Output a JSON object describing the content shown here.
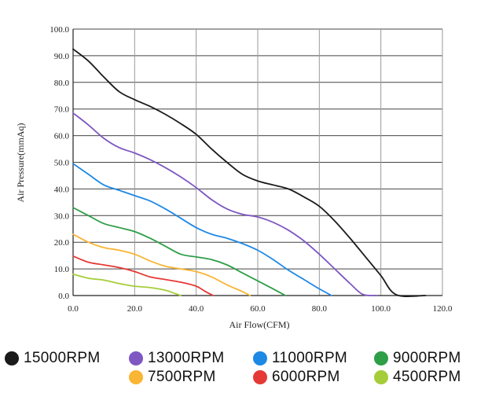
{
  "chart_data": {
    "type": "line",
    "title": "",
    "xlabel": "Air Flow(CFM)",
    "ylabel": "Air Pressure(mmAq)",
    "xlim": [
      0,
      120
    ],
    "ylim": [
      0,
      100
    ],
    "x_ticks": [
      "0.0",
      "20.0",
      "40.0",
      "60.0",
      "80.0",
      "100.0",
      "120.0"
    ],
    "y_ticks": [
      "0.0",
      "10.0",
      "20.0",
      "30.0",
      "40.0",
      "50.0",
      "60.0",
      "70.0",
      "80.0",
      "90.0",
      "100.0"
    ],
    "grid": true,
    "legend_position": "bottom",
    "series": [
      {
        "name": "15000RPM",
        "color": "#1a1a1a",
        "points": [
          [
            0,
            92.5
          ],
          [
            5,
            88
          ],
          [
            10,
            82
          ],
          [
            15,
            76.5
          ],
          [
            20,
            73.5
          ],
          [
            25,
            71
          ],
          [
            30,
            68
          ],
          [
            35,
            64.5
          ],
          [
            40,
            60.5
          ],
          [
            45,
            55
          ],
          [
            50,
            50
          ],
          [
            55,
            45.5
          ],
          [
            60,
            43
          ],
          [
            65,
            41.5
          ],
          [
            70,
            40
          ],
          [
            75,
            37
          ],
          [
            80,
            33.5
          ],
          [
            85,
            28
          ],
          [
            90,
            21.5
          ],
          [
            95,
            14.5
          ],
          [
            100,
            7.5
          ],
          [
            105,
            0.3
          ],
          [
            114.5,
            0
          ]
        ]
      },
      {
        "name": "13000RPM",
        "color": "#7e57c2",
        "points": [
          [
            0,
            68.5
          ],
          [
            5,
            64
          ],
          [
            10,
            59
          ],
          [
            15,
            55.5
          ],
          [
            20,
            53.5
          ],
          [
            25,
            51
          ],
          [
            30,
            48
          ],
          [
            35,
            44.5
          ],
          [
            40,
            40.5
          ],
          [
            45,
            36
          ],
          [
            50,
            32.5
          ],
          [
            55,
            30.5
          ],
          [
            60,
            29.5
          ],
          [
            65,
            27.5
          ],
          [
            70,
            24.5
          ],
          [
            75,
            20.5
          ],
          [
            80,
            15.5
          ],
          [
            85,
            10
          ],
          [
            90,
            4.5
          ],
          [
            94,
            0.5
          ],
          [
            98.5,
            0
          ]
        ]
      },
      {
        "name": "11000RPM",
        "color": "#1e88e5",
        "points": [
          [
            0,
            49.5
          ],
          [
            5,
            45.5
          ],
          [
            10,
            41.5
          ],
          [
            15,
            39.5
          ],
          [
            20,
            37.5
          ],
          [
            25,
            35.5
          ],
          [
            30,
            32.5
          ],
          [
            35,
            29
          ],
          [
            40,
            25.5
          ],
          [
            45,
            23
          ],
          [
            50,
            21.5
          ],
          [
            55,
            19.5
          ],
          [
            60,
            17
          ],
          [
            65,
            13.5
          ],
          [
            70,
            9.5
          ],
          [
            75,
            6
          ],
          [
            80,
            2.5
          ],
          [
            84,
            0
          ]
        ]
      },
      {
        "name": "9000RPM",
        "color": "#2e9e47",
        "points": [
          [
            0,
            33
          ],
          [
            5,
            30
          ],
          [
            10,
            27
          ],
          [
            15,
            25.5
          ],
          [
            20,
            24
          ],
          [
            25,
            21.5
          ],
          [
            30,
            18.5
          ],
          [
            35,
            15.5
          ],
          [
            40,
            14.5
          ],
          [
            45,
            13.5
          ],
          [
            50,
            11.5
          ],
          [
            55,
            8.5
          ],
          [
            60,
            5.5
          ],
          [
            65,
            2.5
          ],
          [
            69,
            0
          ]
        ]
      },
      {
        "name": "7500RPM",
        "color": "#f9b533",
        "points": [
          [
            0,
            23
          ],
          [
            5,
            20
          ],
          [
            10,
            18
          ],
          [
            15,
            17
          ],
          [
            20,
            15.5
          ],
          [
            25,
            13
          ],
          [
            30,
            11
          ],
          [
            35,
            10
          ],
          [
            40,
            9
          ],
          [
            45,
            7
          ],
          [
            50,
            4
          ],
          [
            55,
            1.5
          ],
          [
            57.5,
            0
          ]
        ]
      },
      {
        "name": "6000RPM",
        "color": "#e53935",
        "points": [
          [
            0,
            14.8
          ],
          [
            5,
            12.5
          ],
          [
            10,
            11.5
          ],
          [
            15,
            10.5
          ],
          [
            20,
            9
          ],
          [
            25,
            7
          ],
          [
            30,
            6
          ],
          [
            35,
            5
          ],
          [
            40,
            3.5
          ],
          [
            43,
            1.5
          ],
          [
            45.5,
            0
          ]
        ]
      },
      {
        "name": "4500RPM",
        "color": "#a5cd39",
        "points": [
          [
            0,
            8
          ],
          [
            5,
            6.5
          ],
          [
            10,
            5.8
          ],
          [
            15,
            4.5
          ],
          [
            20,
            3.5
          ],
          [
            25,
            3
          ],
          [
            30,
            2
          ],
          [
            33,
            0.8
          ],
          [
            35,
            0
          ]
        ]
      }
    ]
  }
}
